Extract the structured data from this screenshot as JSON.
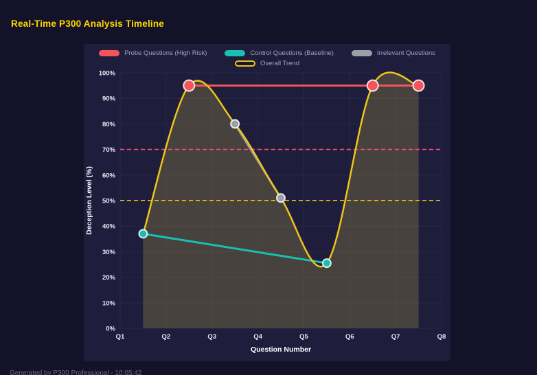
{
  "page": {
    "title": "Real-Time P300 Analysis Timeline",
    "footer": "Generated by P300 Professional - 10:05:42"
  },
  "colors": {
    "background": "#131228",
    "panel": "#1e1e3c",
    "title_accent": "#ffd700",
    "grid": "#272748",
    "axis_text": "#e8e8f2",
    "legend_text": "#9fa3b8"
  },
  "chart_data": {
    "type": "line",
    "title": "Real-Time P300 Analysis Timeline",
    "xlabel": "Question Number",
    "ylabel": "Deception Level (%)",
    "xlim": [
      1,
      8
    ],
    "ylim": [
      0,
      100
    ],
    "grid": true,
    "legend_position": "top",
    "area_fill": "rgba(208,186,72,0.24)",
    "x_ticks": [
      {
        "value": 1,
        "label": "Q1"
      },
      {
        "value": 2,
        "label": "Q2"
      },
      {
        "value": 3,
        "label": "Q3"
      },
      {
        "value": 4,
        "label": "Q4"
      },
      {
        "value": 5,
        "label": "Q5"
      },
      {
        "value": 6,
        "label": "Q6"
      },
      {
        "value": 7,
        "label": "Q7"
      },
      {
        "value": 8,
        "label": "Q8"
      }
    ],
    "y_ticks": [
      {
        "value": 0,
        "label": "0%"
      },
      {
        "value": 10,
        "label": "10%"
      },
      {
        "value": 20,
        "label": "20%"
      },
      {
        "value": 30,
        "label": "30%"
      },
      {
        "value": 40,
        "label": "40%"
      },
      {
        "value": 50,
        "label": "50%"
      },
      {
        "value": 60,
        "label": "60%"
      },
      {
        "value": 70,
        "label": "70%"
      },
      {
        "value": 80,
        "label": "80%"
      },
      {
        "value": 90,
        "label": "90%"
      },
      {
        "value": 100,
        "label": "100%"
      }
    ],
    "series": [
      {
        "name": "Probe Questions (High Risk)",
        "color": "#f4545c",
        "x": [
          2.5,
          6.5,
          7.5
        ],
        "values": [
          95,
          95,
          95
        ],
        "smooth": false,
        "markers": true,
        "marker_radius": 8,
        "swatch": "solid"
      },
      {
        "name": "Control Questions (Baseline)",
        "color": "#18bfb2",
        "x": [
          1.5,
          5.5
        ],
        "values": [
          37,
          25.5
        ],
        "smooth": false,
        "markers": true,
        "marker_radius": 6,
        "swatch": "solid"
      },
      {
        "name": "Irrelevant Questions",
        "color": "#9aa0a8",
        "x": [
          3.5,
          4.5
        ],
        "values": [
          80,
          51
        ],
        "smooth": false,
        "markers": true,
        "marker_radius": 6,
        "swatch": "solid"
      },
      {
        "name": "Overall Trend",
        "color": "#f0c419",
        "x": [
          1.5,
          2.5,
          3.5,
          4.5,
          5.5,
          6.5,
          7.5
        ],
        "values": [
          37,
          95,
          80,
          51,
          25.5,
          95,
          95
        ],
        "smooth": true,
        "area": true,
        "markers": false,
        "swatch": "outline"
      }
    ],
    "thresholds": [
      {
        "value": 70,
        "color": "#ff4d6e",
        "style": "dashed"
      },
      {
        "value": 50,
        "color": "#ffd60a",
        "style": "dashed"
      }
    ]
  }
}
